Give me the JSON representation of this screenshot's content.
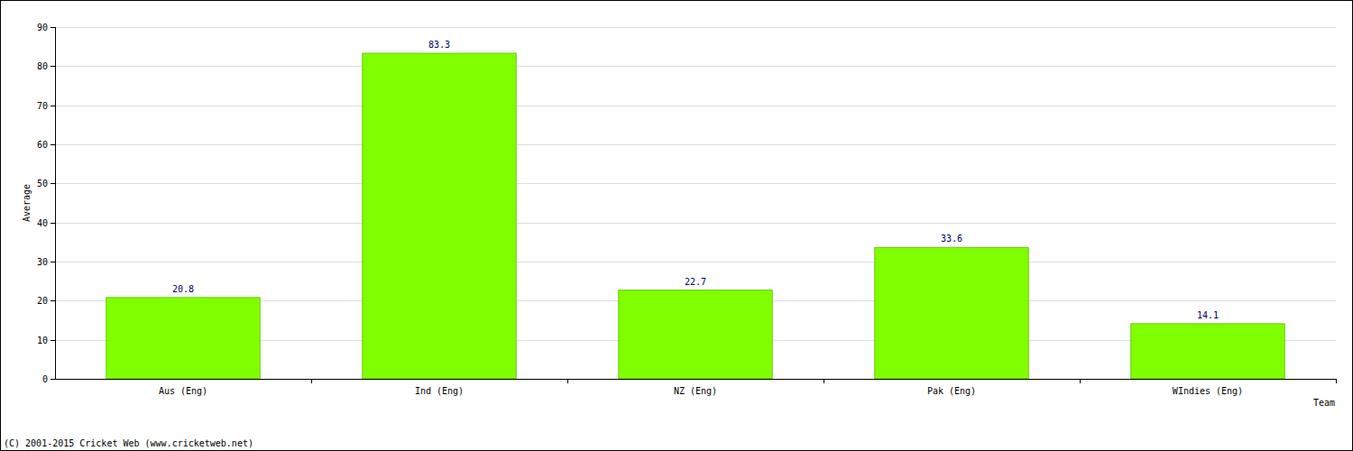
{
  "chart_data": {
    "type": "bar",
    "categories": [
      "Aus (Eng)",
      "Ind (Eng)",
      "NZ (Eng)",
      "Pak (Eng)",
      "WIndies (Eng)"
    ],
    "values": [
      20.8,
      83.3,
      22.7,
      33.6,
      14.1
    ],
    "color": "#80ff00",
    "x_label": "Team",
    "y_label": "Average",
    "annotations": [
      "(C) 2001-2015 Cricket Web (www.cricketweb.net)"
    ],
    "ylim": [
      0,
      90
    ],
    "yticks": [
      0,
      10,
      20,
      30,
      40,
      50,
      60,
      70,
      80,
      90
    ],
    "grid": true,
    "data_labels": true
  }
}
